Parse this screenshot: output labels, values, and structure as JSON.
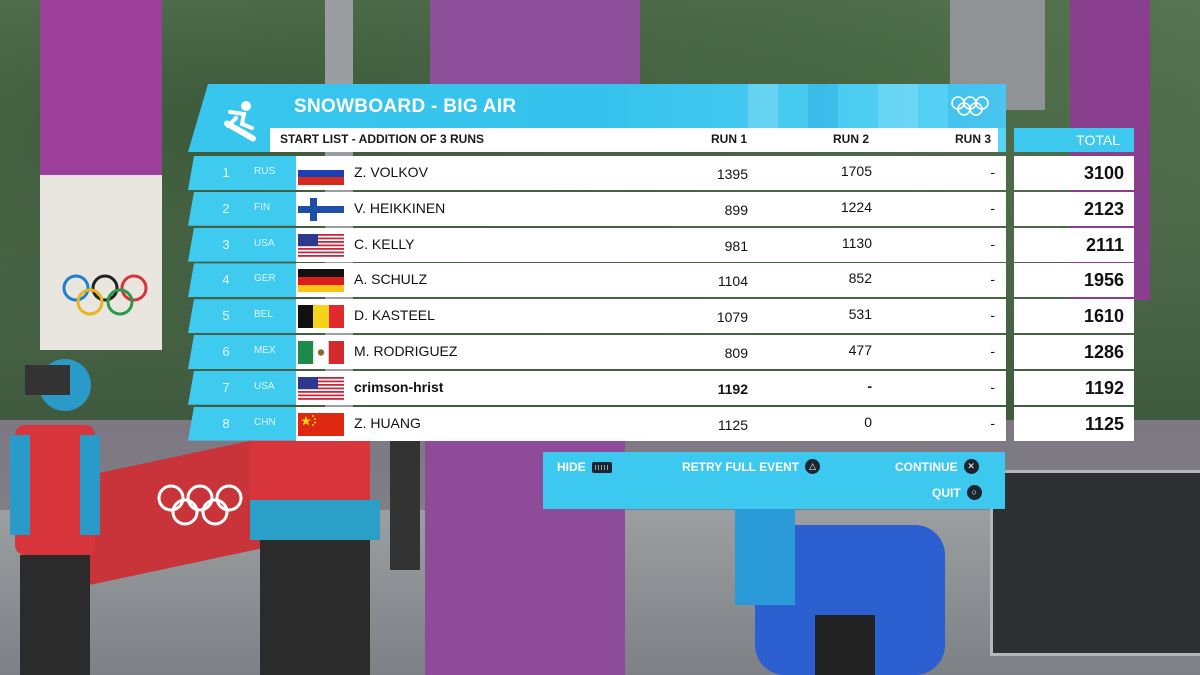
{
  "event": {
    "title": "SNOWBOARD - BIG AIR",
    "sport_icon": "snowboard-icon",
    "olympic_icon": "olympic-rings-icon"
  },
  "table": {
    "subtitle": "START LIST - ADDITION OF 3 RUNS",
    "headers": {
      "run1": "RUN 1",
      "run2": "RUN 2",
      "run3": "RUN 3",
      "total": "TOTAL"
    },
    "rows": [
      {
        "rank": "1",
        "country": "RUS",
        "flag": "russia-flag",
        "name": "Z. VOLKOV",
        "run1": "1395",
        "run2": "1705",
        "run3": "-",
        "total": "3100"
      },
      {
        "rank": "2",
        "country": "FIN",
        "flag": "finland-flag",
        "name": "V. HEIKKINEN",
        "run1": "899",
        "run2": "1224",
        "run3": "-",
        "total": "2123"
      },
      {
        "rank": "3",
        "country": "USA",
        "flag": "usa-flag",
        "name": "C. KELLY",
        "run1": "981",
        "run2": "1130",
        "run3": "-",
        "total": "2111"
      },
      {
        "rank": "4",
        "country": "GER",
        "flag": "germany-flag",
        "name": "A. SCHULZ",
        "run1": "1104",
        "run2": "852",
        "run3": "-",
        "total": "1956"
      },
      {
        "rank": "5",
        "country": "BEL",
        "flag": "belgium-flag",
        "name": "D. KASTEEL",
        "run1": "1079",
        "run2": "531",
        "run3": "-",
        "total": "1610"
      },
      {
        "rank": "6",
        "country": "MEX",
        "flag": "mexico-flag",
        "name": "M. RODRIGUEZ",
        "run1": "809",
        "run2": "477",
        "run3": "-",
        "total": "1286"
      },
      {
        "rank": "7",
        "country": "USA",
        "flag": "usa-flag",
        "name": "crimson-hrist",
        "run1": "1192",
        "run2": "-",
        "run3": "-",
        "total": "1192"
      },
      {
        "rank": "8",
        "country": "CHN",
        "flag": "china-flag",
        "name": "Z. HUANG",
        "run1": "1125",
        "run2": "0",
        "run3": "-",
        "total": "1125"
      }
    ]
  },
  "menu": {
    "hide": {
      "label": "HIDE",
      "icon": "touchpad-icon"
    },
    "retry": {
      "label": "RETRY FULL EVENT",
      "icon": "triangle-button-icon"
    },
    "continue": {
      "label": "CONTINUE",
      "icon": "cross-button-icon"
    },
    "quit": {
      "label": "QUIT",
      "icon": "circle-button-icon"
    }
  },
  "colors": {
    "accent": "#3cc8ef",
    "panel": "#ffffff",
    "button_glyph": "#1b2530"
  }
}
